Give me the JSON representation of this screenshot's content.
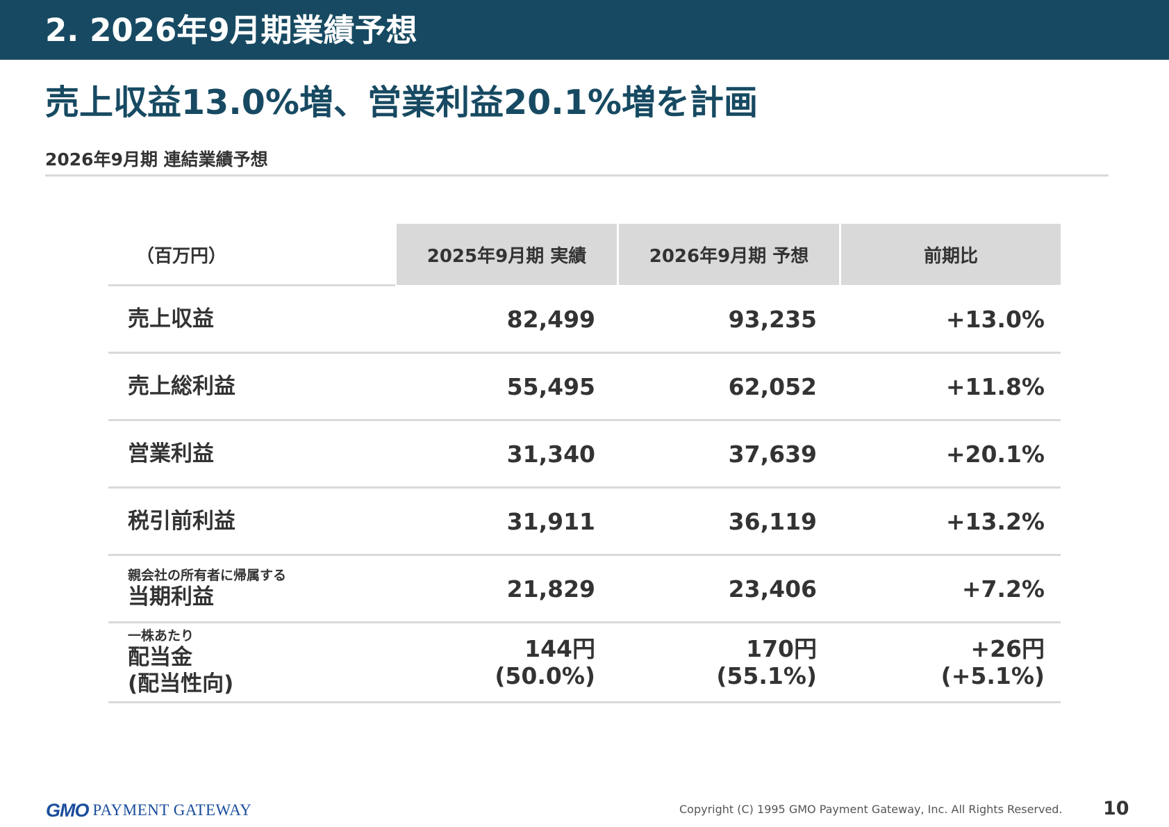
{
  "header": {
    "title": "2.  2026年9月期業績予想"
  },
  "headline": "売上収益13.0%増、営業利益20.1%増を計画",
  "subtitle": "2026年9月期 連結業績予想",
  "table": {
    "unit_label": "（百万円）",
    "columns": [
      "2025年9月期 実績",
      "2026年9月期 予想",
      "前期比"
    ],
    "rows": [
      {
        "label_small": "",
        "label": "売上収益",
        "v1": "82,499",
        "v2": "93,235",
        "v3": "+13.0%"
      },
      {
        "label_small": "",
        "label": "売上総利益",
        "v1": "55,495",
        "v2": "62,052",
        "v3": "+11.8%"
      },
      {
        "label_small": "",
        "label": "営業利益",
        "v1": "31,340",
        "v2": "37,639",
        "v3": "+20.1%"
      },
      {
        "label_small": "",
        "label": "税引前利益",
        "v1": "31,911",
        "v2": "36,119",
        "v3": "+13.2%"
      },
      {
        "label_small": "親会社の所有者に帰属する",
        "label": "当期利益",
        "v1": "21,829",
        "v2": "23,406",
        "v3": "+7.2%"
      }
    ],
    "dividend_row": {
      "label_small": "一株あたり",
      "label": "配当金",
      "label2": "(配当性向)",
      "v1": "144円",
      "v1b": "(50.0%)",
      "v2": "170円",
      "v2b": "(55.1%)",
      "v3": "+26円",
      "v3b": "(+5.1%)"
    }
  },
  "footer": {
    "logo_gmo": "GMO",
    "logo_text": "PAYMENT GATEWAY",
    "copyright": "Copyright (C) 1995 GMO Payment Gateway, Inc. All Rights Reserved.",
    "page_number": "10"
  },
  "colors": {
    "header_bg": "#174a62",
    "headline": "#174a62",
    "table_header_bg": "#d9d9d9",
    "logo": "#1a4d9c"
  }
}
